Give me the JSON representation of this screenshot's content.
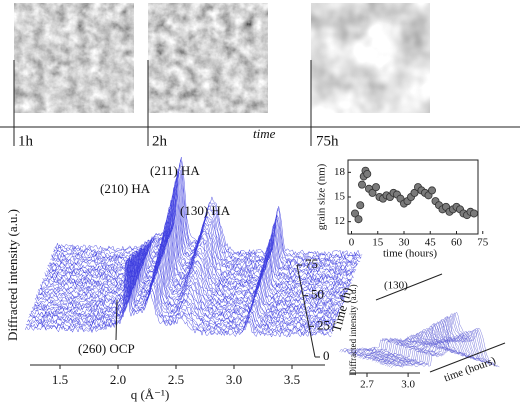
{
  "timeline": {
    "labels": [
      "1h",
      "2h",
      "75h"
    ],
    "axis_label": "time"
  },
  "chart_data": [
    {
      "type": "waterfall",
      "peak_labels": [
        "(210) HA",
        "(211) HA",
        "(130) HA",
        "(260) OCP"
      ],
      "y_label": "Diffracted intensity (a.u.)",
      "x_label": "q (Å⁻¹)",
      "xlim": [
        1.2,
        3.85
      ],
      "xticks": [
        1.5,
        {
          "value": 2,
          "label": "2.0"
        },
        2.5,
        {
          "value": 3,
          "label": "3.0"
        },
        3.5
      ],
      "zlim": [
        0,
        75
      ],
      "zticks": [
        0,
        25,
        50,
        75
      ],
      "z_label": "Time (h)",
      "color": "#3a3adf"
    },
    {
      "type": "scatter",
      "x_label": "time (hours)",
      "y_label": "grain size (nm)",
      "xlim": [
        -2,
        78
      ],
      "xticks": [
        0,
        15,
        30,
        45,
        60,
        75
      ],
      "ylim": [
        10.5,
        19.5
      ],
      "yticks": [
        12,
        15,
        18
      ],
      "color": "#7a7a7a",
      "x": [
        2,
        4,
        5,
        6,
        7,
        8,
        9,
        10,
        12,
        14,
        16,
        18,
        20,
        22,
        24,
        26,
        28,
        30,
        32,
        34,
        36,
        38,
        40,
        42,
        44,
        46,
        48,
        50,
        52,
        54,
        56,
        58,
        60,
        62,
        64,
        66,
        68,
        70
      ],
      "values": [
        13,
        12.3,
        14,
        16.5,
        17.5,
        18.2,
        17.8,
        16,
        15.5,
        16.2,
        15,
        14.8,
        15.2,
        15,
        15.5,
        15.3,
        14.8,
        14.2,
        14.5,
        15,
        15.5,
        16.2,
        15.8,
        15.5,
        15.2,
        15.8,
        14.5,
        14,
        13.5,
        13.8,
        13.2,
        13.5,
        13.8,
        13.5,
        13,
        12.8,
        13.2,
        13
      ]
    },
    {
      "type": "waterfall",
      "peak_labels": [
        "(130)"
      ],
      "y_label": "Diffracted intensity (a.u.)",
      "z_label": "time (hours)",
      "xlim": [
        2.5,
        3.3
      ],
      "xticks": [
        2.7,
        {
          "value": 3,
          "label": "3.0"
        }
      ],
      "color": "#6a6ad8"
    }
  ]
}
